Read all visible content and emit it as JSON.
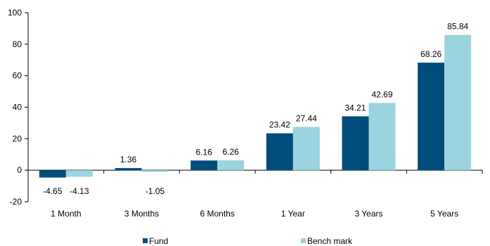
{
  "chart_data": {
    "type": "bar",
    "categories": [
      "1 Month",
      "3 Months",
      "6 Months",
      "1 Year",
      "3 Years",
      "5 Years"
    ],
    "series": [
      {
        "name": "Fund",
        "values": [
          -4.65,
          1.36,
          6.16,
          23.42,
          34.21,
          68.26
        ],
        "labels": [
          "-4.65",
          "1.36",
          "6.16",
          "23.42",
          "34.21",
          "68.26"
        ]
      },
      {
        "name": "Bench mark",
        "values": [
          -4.13,
          -1.05,
          6.26,
          27.44,
          42.69,
          85.84
        ],
        "labels": [
          "-4.13",
          "-1.05",
          "6.26",
          "27.44",
          "42.69",
          "85.84"
        ]
      }
    ],
    "ylim": [
      -20,
      100
    ],
    "yticks": [
      "-20",
      "0",
      "20",
      "40",
      "60",
      "80",
      "100"
    ],
    "colors": {
      "Fund": "#004c7b",
      "Bench mark": "#9bd3de"
    },
    "legend_position": "bottom-left",
    "grid": false
  }
}
